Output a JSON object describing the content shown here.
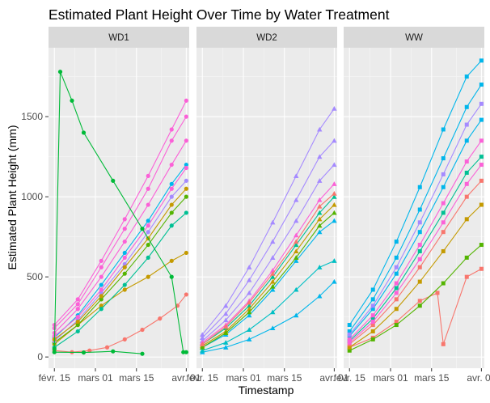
{
  "chart_data": {
    "type": "line",
    "title": "Estimated Plant Height Over Time by Water Treatment",
    "xlabel": "Timestamp",
    "ylabel": "Estimated Plant Height (mm)",
    "x_ticks": [
      "févr. 15",
      "mars 01",
      "mars 15",
      "avr. 01"
    ],
    "x_tick_values": [
      0,
      14,
      28,
      45
    ],
    "xlim": [
      -2,
      46
    ],
    "y_ticks": [
      "0",
      "500",
      "1000",
      "1500"
    ],
    "y_tick_values": [
      0,
      500,
      1000,
      1500
    ],
    "ylim": [
      -70,
      1930
    ],
    "grid": true,
    "facets": [
      "WD1",
      "WD2",
      "WW"
    ],
    "colors": {
      "panel_bg": "#ebebeb",
      "strip_bg": "#d9d9d9",
      "grid_major": "#ffffff",
      "series_palette": [
        "#F8766D",
        "#C49A00",
        "#53B400",
        "#00C094",
        "#00B6EB",
        "#A58AFF",
        "#FB61D7"
      ]
    },
    "series_note": "Many overlapping plant series per panel; representative series shown with estimated values.",
    "panels": [
      {
        "name": "WD1",
        "marker": "circle",
        "series": [
          {
            "color": "#F8766D",
            "x": [
              0,
              6,
              12,
              18,
              24,
              30,
              36,
              42,
              45
            ],
            "y": [
              40,
              30,
              40,
              60,
              110,
              170,
              240,
              320,
              390
            ]
          },
          {
            "color": "#00BA38",
            "x": [
              0,
              10,
              20,
              30
            ],
            "y": [
              30,
              28,
              35,
              20
            ]
          },
          {
            "color": "#C49A00",
            "x": [
              0,
              8,
              16,
              24,
              32,
              40,
              45
            ],
            "y": [
              80,
              200,
              320,
              420,
              500,
              600,
              650
            ]
          },
          {
            "color": "#00C094",
            "x": [
              0,
              8,
              16,
              24,
              32,
              40,
              45
            ],
            "y": [
              60,
              160,
              300,
              450,
              620,
              820,
              900
            ]
          },
          {
            "color": "#53B400",
            "x": [
              0,
              8,
              16,
              24,
              32,
              40,
              45
            ],
            "y": [
              90,
              200,
              360,
              520,
              700,
              900,
              1000
            ]
          },
          {
            "color": "#A58AFF",
            "x": [
              0,
              8,
              16,
              24,
              32,
              40,
              45
            ],
            "y": [
              100,
              230,
              400,
              580,
              780,
              1000,
              1100
            ]
          },
          {
            "color": "#00B6EB",
            "x": [
              0,
              8,
              16,
              24,
              32,
              40,
              45
            ],
            "y": [
              120,
              260,
              450,
              650,
              850,
              1080,
              1200
            ]
          },
          {
            "color": "#FB61D7",
            "x": [
              0,
              8,
              16,
              24,
              32,
              40,
              45
            ],
            "y": [
              150,
              300,
              500,
              720,
              950,
              1200,
              1350
            ]
          },
          {
            "color": "#FB61D7",
            "x": [
              0,
              8,
              16,
              24,
              32,
              40,
              45
            ],
            "y": [
              180,
              330,
              560,
              800,
              1050,
              1350,
              1500
            ]
          },
          {
            "color": "#FB61D7",
            "x": [
              0,
              8,
              16,
              24,
              32,
              40,
              45
            ],
            "y": [
              200,
              360,
              600,
              860,
              1130,
              1420,
              1600
            ]
          },
          {
            "color": "#FB61D7",
            "x": [
              0,
              8,
              16,
              24,
              32,
              40,
              45
            ],
            "y": [
              130,
              250,
              420,
              620,
              820,
              1050,
              1180
            ]
          },
          {
            "color": "#C49A00",
            "x": [
              0,
              8,
              16,
              24,
              32,
              40,
              45
            ],
            "y": [
              110,
              220,
              380,
              560,
              740,
              950,
              1050
            ]
          },
          {
            "color": "#00BA38",
            "x": [
              0,
              2,
              6,
              10,
              20,
              30,
              40,
              44,
              45
            ],
            "y": [
              50,
              1780,
              1600,
              1400,
              1100,
              800,
              500,
              30,
              30
            ]
          }
        ]
      },
      {
        "name": "WD2",
        "marker": "triangle",
        "series": [
          {
            "color": "#00B6EB",
            "x": [
              0,
              8,
              16,
              24,
              32,
              40,
              45
            ],
            "y": [
              30,
              60,
              110,
              180,
              260,
              380,
              470
            ]
          },
          {
            "color": "#00BFC4",
            "x": [
              0,
              8,
              16,
              24,
              32,
              40,
              45
            ],
            "y": [
              40,
              90,
              170,
              280,
              420,
              560,
              600
            ]
          },
          {
            "color": "#00B6EB",
            "x": [
              0,
              8,
              16,
              24,
              32,
              40,
              45
            ],
            "y": [
              60,
              140,
              260,
              420,
              600,
              780,
              850
            ]
          },
          {
            "color": "#00C094",
            "x": [
              0,
              8,
              16,
              24,
              32,
              40,
              45
            ],
            "y": [
              80,
              180,
              320,
              500,
              700,
              900,
              1000
            ]
          },
          {
            "color": "#A58AFF",
            "x": [
              0,
              8,
              16,
              24,
              32,
              40,
              45
            ],
            "y": [
              100,
              230,
              400,
              620,
              850,
              1100,
              1200
            ]
          },
          {
            "color": "#A58AFF",
            "x": [
              0,
              8,
              16,
              24,
              32,
              40,
              45
            ],
            "y": [
              120,
              270,
              480,
              720,
              980,
              1250,
              1350
            ]
          },
          {
            "color": "#A58AFF",
            "x": [
              0,
              8,
              16,
              24,
              32,
              40,
              45
            ],
            "y": [
              140,
              320,
              560,
              840,
              1130,
              1420,
              1550
            ]
          },
          {
            "color": "#FB61D7",
            "x": [
              0,
              8,
              16,
              24,
              32,
              40,
              45
            ],
            "y": [
              90,
              200,
              350,
              540,
              760,
              980,
              1080
            ]
          },
          {
            "color": "#C49A00",
            "x": [
              0,
              8,
              16,
              24,
              32,
              40,
              45
            ],
            "y": [
              70,
              160,
              300,
              470,
              660,
              860,
              950
            ]
          },
          {
            "color": "#53B400",
            "x": [
              0,
              8,
              16,
              24,
              32,
              40,
              45
            ],
            "y": [
              60,
              150,
              280,
              440,
              620,
              820,
              900
            ]
          },
          {
            "color": "#F8766D",
            "x": [
              0,
              8,
              16,
              24,
              32,
              40,
              45
            ],
            "y": [
              80,
              190,
              340,
              520,
              720,
              940,
              1020
            ]
          }
        ]
      },
      {
        "name": "WW",
        "marker": "square",
        "series": [
          {
            "color": "#F8766D",
            "x": [
              0,
              8,
              16,
              24,
              30,
              32,
              40,
              45
            ],
            "y": [
              60,
              120,
              220,
              350,
              400,
              80,
              500,
              550
            ]
          },
          {
            "color": "#53B400",
            "x": [
              0,
              8,
              16,
              24,
              32,
              40,
              45
            ],
            "y": [
              40,
              110,
              200,
              320,
              460,
              620,
              700
            ]
          },
          {
            "color": "#C49A00",
            "x": [
              0,
              8,
              16,
              24,
              32,
              40,
              45
            ],
            "y": [
              60,
              160,
              300,
              470,
              660,
              860,
              950
            ]
          },
          {
            "color": "#F8766D",
            "x": [
              0,
              8,
              16,
              24,
              32,
              40,
              45
            ],
            "y": [
              80,
              200,
              360,
              560,
              780,
              1000,
              1100
            ]
          },
          {
            "color": "#00C094",
            "x": [
              0,
              8,
              16,
              24,
              32,
              40,
              45
            ],
            "y": [
              100,
              240,
              430,
              660,
              900,
              1150,
              1250
            ]
          },
          {
            "color": "#00B6EB",
            "x": [
              0,
              8,
              16,
              24,
              32,
              40,
              45
            ],
            "y": [
              130,
              300,
              520,
              780,
              1060,
              1350,
              1480
            ]
          },
          {
            "color": "#00B6EB",
            "x": [
              0,
              8,
              16,
              24,
              32,
              40,
              45
            ],
            "y": [
              160,
              360,
              620,
              920,
              1240,
              1560,
              1700
            ]
          },
          {
            "color": "#00B6EB",
            "x": [
              0,
              8,
              16,
              24,
              32,
              40,
              45
            ],
            "y": [
              200,
              420,
              720,
              1060,
              1420,
              1750,
              1850
            ]
          },
          {
            "color": "#A58AFF",
            "x": [
              0,
              8,
              16,
              24,
              32,
              40,
              45
            ],
            "y": [
              140,
              320,
              560,
              840,
              1140,
              1450,
              1580
            ]
          },
          {
            "color": "#FB61D7",
            "x": [
              0,
              8,
              16,
              24,
              32,
              40,
              45
            ],
            "y": [
              110,
              260,
              460,
              700,
              960,
              1220,
              1350
            ]
          },
          {
            "color": "#FB61D7",
            "x": [
              0,
              8,
              16,
              24,
              32,
              40,
              45
            ],
            "y": [
              90,
              220,
              400,
              610,
              840,
              1080,
              1200
            ]
          }
        ]
      }
    ]
  }
}
